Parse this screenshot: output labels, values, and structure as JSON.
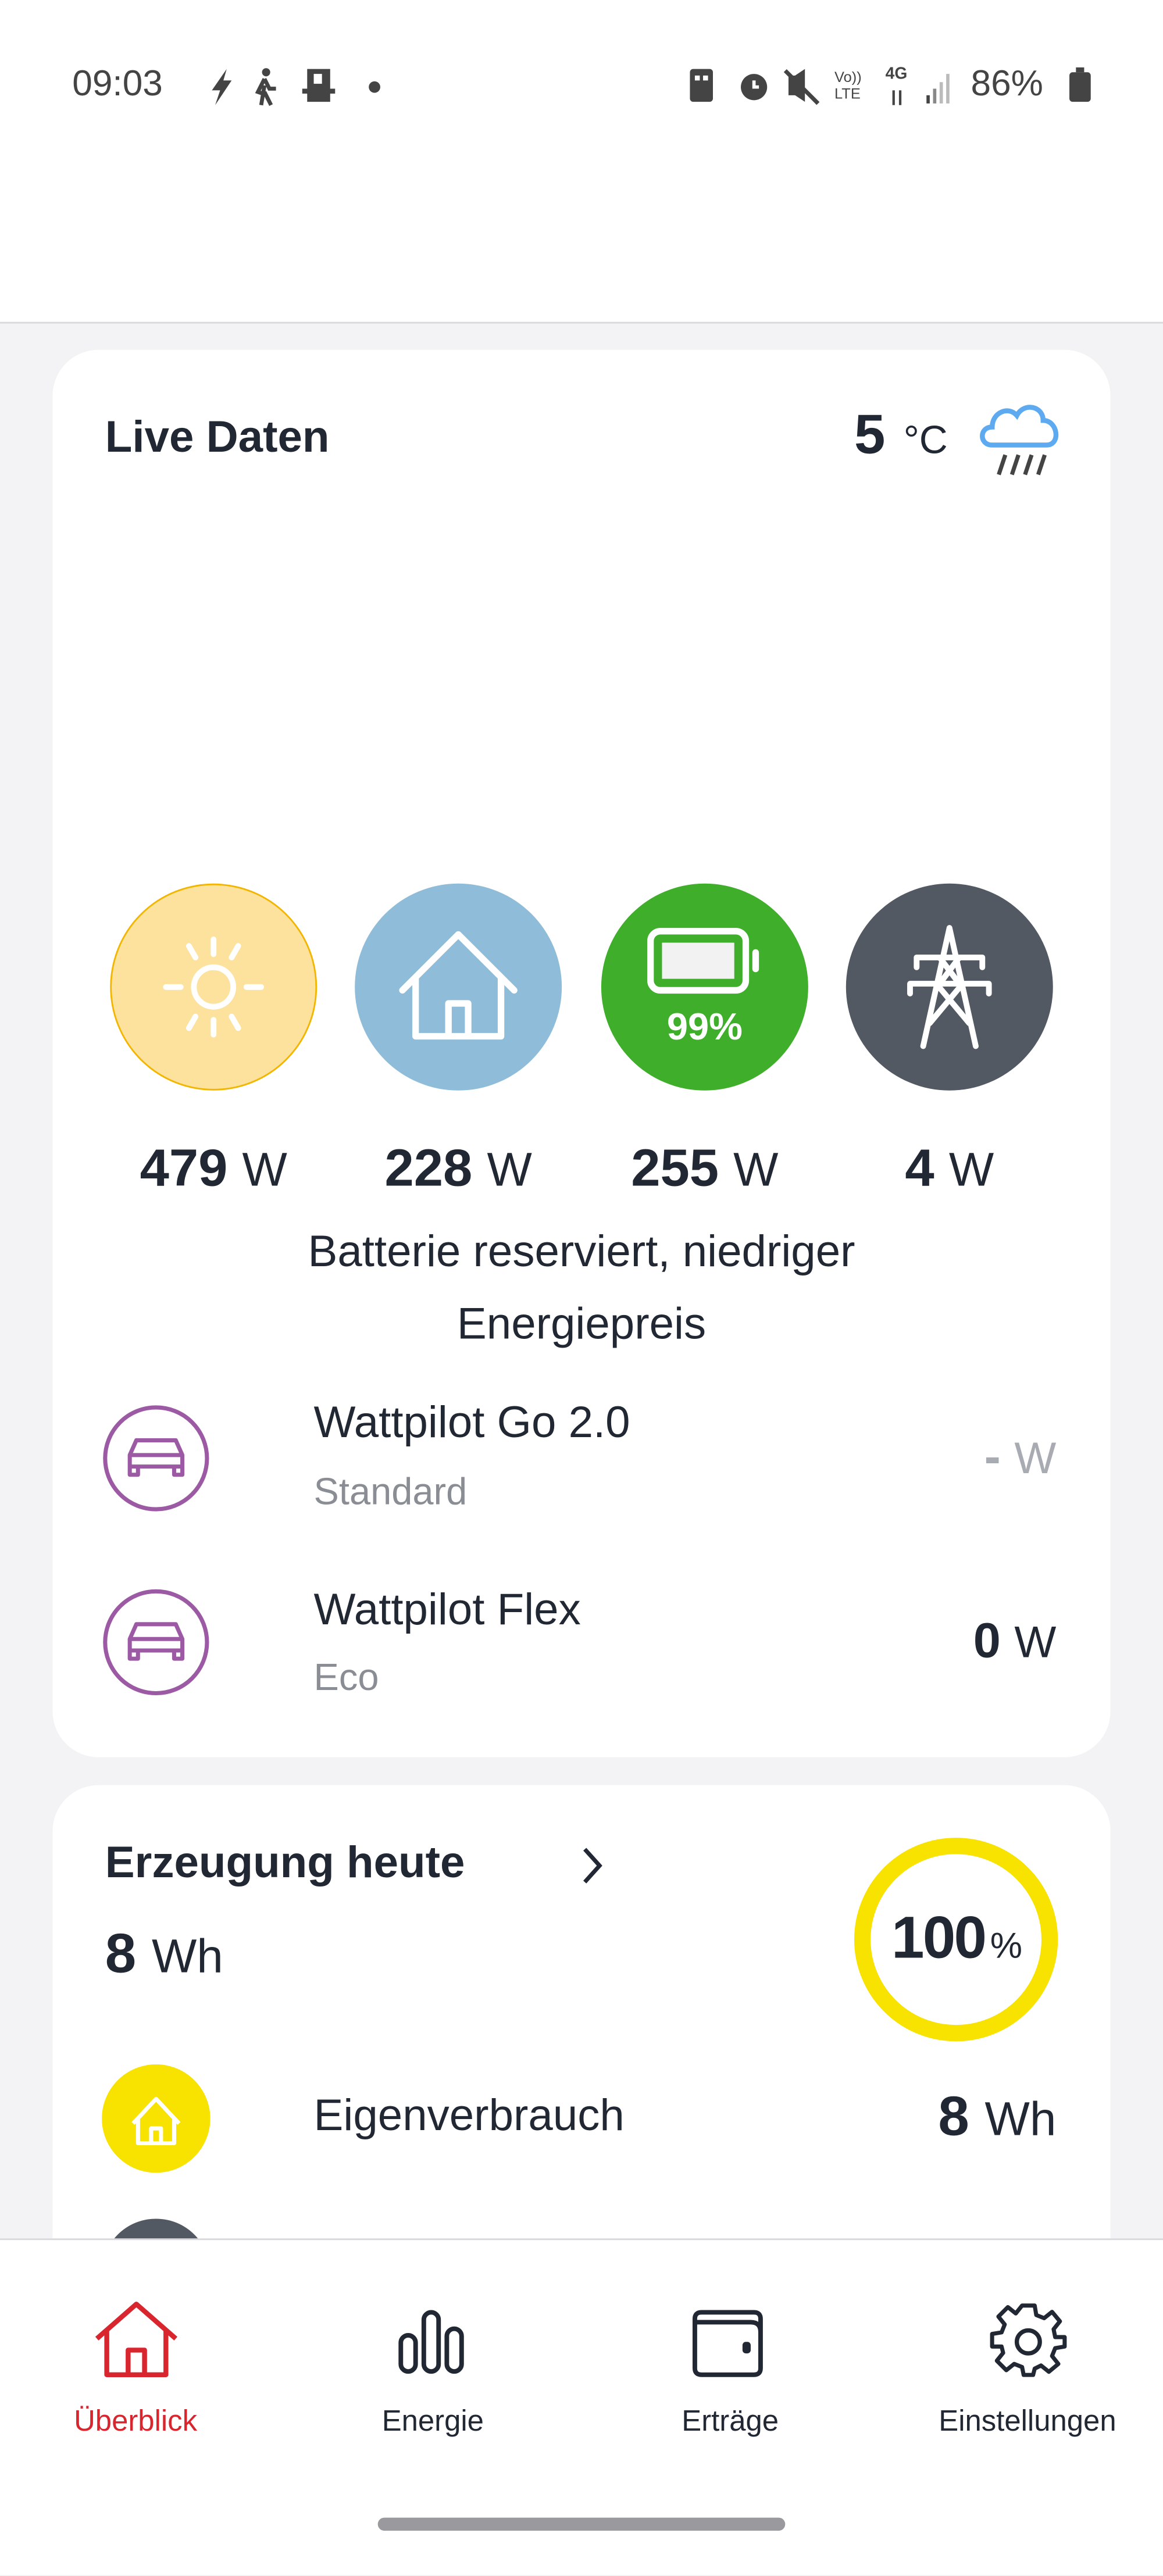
{
  "status_bar": {
    "time": "09:03",
    "battery": "86%",
    "network": "4G",
    "volte": "Vo)) LTE"
  },
  "colors": {
    "accent": "#d9262e",
    "solar": "#fde29e",
    "home": "#8fbcd8",
    "battery": "#3fae2a",
    "grid": "#525962",
    "wallbox": "#9b5aa3",
    "ring": "#f7e200"
  },
  "live": {
    "title": "Live Daten",
    "temperature": "5",
    "temperature_unit": "°C",
    "weather_icon": "cloud-rain-icon",
    "battery_percent": "99%",
    "tiles": [
      {
        "icon": "sun-icon",
        "value": "479",
        "unit": "W"
      },
      {
        "icon": "house-icon",
        "value": "228",
        "unit": "W"
      },
      {
        "icon": "battery-icon",
        "value": "255",
        "unit": "W"
      },
      {
        "icon": "power-tower-icon",
        "value": "4",
        "unit": "W"
      }
    ],
    "status_message_line1": "Batterie reserviert, niedriger",
    "status_message_line2": "Energiepreis",
    "chargers": [
      {
        "name": "Wattpilot Go 2.0",
        "mode": "Standard",
        "value": "-",
        "unit": "W"
      },
      {
        "name": "Wattpilot Flex",
        "mode": "Eco",
        "value": "0",
        "unit": "W"
      }
    ]
  },
  "production": {
    "title": "Erzeugung heute",
    "value": "8",
    "unit": "Wh",
    "ring_value": "100",
    "ring_unit": "%",
    "self_consumption_label": "Eigenverbrauch",
    "self_consumption_value": "8",
    "self_consumption_unit": "Wh"
  },
  "nav": {
    "items": [
      {
        "label": "Überblick",
        "icon": "home-icon",
        "active": true
      },
      {
        "label": "Energie",
        "icon": "bar-chart-icon"
      },
      {
        "label": "Erträge",
        "icon": "wallet-icon"
      },
      {
        "label": "Einstellungen",
        "icon": "gear-icon"
      }
    ]
  }
}
